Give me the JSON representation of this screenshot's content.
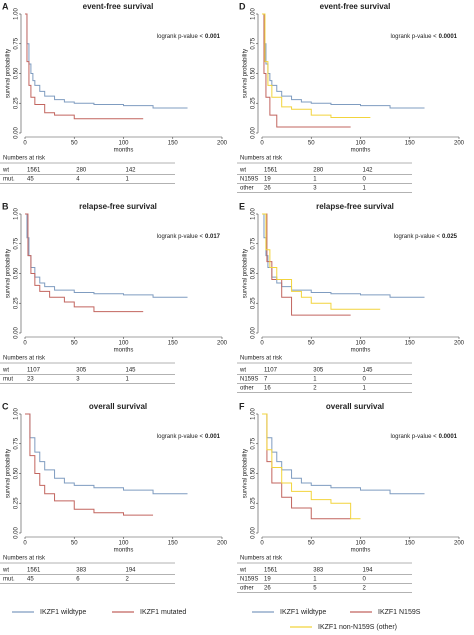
{
  "chart_data": [
    {
      "type": "step",
      "letter": "A",
      "title": "event-free survival",
      "annotation": "logrank p-value <",
      "p_value": 0.001,
      "xlabel": "months",
      "ylabel": "survival probability",
      "xlim": [
        0,
        200
      ],
      "ylim": [
        0,
        1
      ],
      "xticks": [
        0,
        50,
        100,
        150,
        200
      ],
      "yticks": [
        {
          "value": 0,
          "label": "0.00"
        },
        {
          "value": 0.25,
          "label": "0.25"
        },
        {
          "value": 0.5,
          "label": "0.50"
        },
        {
          "value": 0.75,
          "label": "0.75"
        },
        {
          "value": 1,
          "label": "1.00"
        }
      ],
      "series": [
        {
          "name": "IKZF1 wildtype",
          "color": "#7f9cc0",
          "x": [
            0,
            2,
            4,
            6,
            8,
            10,
            15,
            20,
            30,
            40,
            50,
            70,
            100,
            130,
            165
          ],
          "values": [
            1,
            0.75,
            0.58,
            0.5,
            0.44,
            0.4,
            0.35,
            0.31,
            0.28,
            0.26,
            0.25,
            0.24,
            0.23,
            0.21,
            0.21
          ]
        },
        {
          "name": "IKZF1 mutated",
          "color": "#c2655f",
          "x": [
            0,
            2,
            4,
            6,
            10,
            20,
            30,
            50,
            120
          ],
          "values": [
            1,
            0.6,
            0.4,
            0.3,
            0.24,
            0.17,
            0.15,
            0.12,
            0.12
          ]
        }
      ],
      "risk_table": {
        "title": "Numbers at risk",
        "rows": [
          {
            "name": "wt",
            "values": [
              1561,
              280,
              142
            ]
          },
          {
            "name": "mut.",
            "values": [
              45,
              4,
              1
            ]
          }
        ]
      }
    },
    {
      "type": "step",
      "letter": "B",
      "title": "relapse-free survival",
      "annotation": "logrank p-value <",
      "p_value": 0.017,
      "xlabel": "months",
      "ylabel": "survival probability",
      "xlim": [
        0,
        200
      ],
      "ylim": [
        0,
        1
      ],
      "xticks": [
        0,
        50,
        100,
        150,
        200
      ],
      "yticks": [
        {
          "value": 0,
          "label": "0.00"
        },
        {
          "value": 0.25,
          "label": "0.25"
        },
        {
          "value": 0.5,
          "label": "0.50"
        },
        {
          "value": 0.75,
          "label": "0.75"
        },
        {
          "value": 1,
          "label": "1.00"
        }
      ],
      "series": [
        {
          "name": "IKZF1 wildtype",
          "color": "#7f9cc0",
          "x": [
            0,
            2,
            4,
            6,
            10,
            15,
            20,
            30,
            50,
            70,
            100,
            130,
            165
          ],
          "values": [
            1,
            0.8,
            0.65,
            0.55,
            0.47,
            0.42,
            0.39,
            0.36,
            0.34,
            0.33,
            0.32,
            0.3,
            0.3
          ]
        },
        {
          "name": "IKZF1 mutated",
          "color": "#c2655f",
          "x": [
            0,
            3,
            6,
            10,
            15,
            25,
            40,
            50,
            70,
            120
          ],
          "values": [
            1,
            0.65,
            0.5,
            0.4,
            0.35,
            0.3,
            0.26,
            0.22,
            0.18,
            0.18
          ]
        }
      ],
      "risk_table": {
        "title": "Numbers at risk",
        "rows": [
          {
            "name": "wt",
            "values": [
              1107,
              305,
              145
            ]
          },
          {
            "name": "mut",
            "values": [
              23,
              3,
              1
            ]
          }
        ]
      }
    },
    {
      "type": "step",
      "letter": "C",
      "title": "overall survival",
      "annotation": "logrank p-value <",
      "p_value": 0.001,
      "xlabel": "months",
      "ylabel": "survival probability",
      "xlim": [
        0,
        200
      ],
      "ylim": [
        0,
        1
      ],
      "xticks": [
        0,
        50,
        100,
        150,
        200
      ],
      "yticks": [
        {
          "value": 0,
          "label": "0.00"
        },
        {
          "value": 0.25,
          "label": "0.25"
        },
        {
          "value": 0.5,
          "label": "0.50"
        },
        {
          "value": 0.75,
          "label": "0.75"
        },
        {
          "value": 1,
          "label": "1.00"
        }
      ],
      "series": [
        {
          "name": "IKZF1 wildtype",
          "color": "#7f9cc0",
          "x": [
            0,
            5,
            10,
            15,
            20,
            30,
            40,
            50,
            70,
            100,
            130,
            165
          ],
          "values": [
            1,
            0.8,
            0.68,
            0.6,
            0.53,
            0.46,
            0.42,
            0.4,
            0.38,
            0.36,
            0.33,
            0.33
          ]
        },
        {
          "name": "IKZF1 mutated",
          "color": "#c2655f",
          "x": [
            0,
            5,
            10,
            15,
            20,
            30,
            50,
            70,
            100,
            130
          ],
          "values": [
            1,
            0.65,
            0.5,
            0.4,
            0.33,
            0.27,
            0.2,
            0.17,
            0.15,
            0.15
          ]
        }
      ],
      "risk_table": {
        "title": "Numbers at risk",
        "rows": [
          {
            "name": "wt",
            "values": [
              1561,
              383,
              194
            ]
          },
          {
            "name": "mut.",
            "values": [
              45,
              6,
              2
            ]
          }
        ]
      }
    },
    {
      "type": "step",
      "letter": "D",
      "title": "event-free survival",
      "annotation": "logrank p-value <",
      "p_value": 0.0001,
      "xlabel": "months",
      "ylabel": "survival probability",
      "xlim": [
        0,
        200
      ],
      "ylim": [
        0,
        1
      ],
      "xticks": [
        0,
        50,
        100,
        150,
        200
      ],
      "yticks": [
        {
          "value": 0,
          "label": "0.00"
        },
        {
          "value": 0.25,
          "label": "0.25"
        },
        {
          "value": 0.5,
          "label": "0.50"
        },
        {
          "value": 0.75,
          "label": "0.75"
        },
        {
          "value": 1,
          "label": "1.00"
        }
      ],
      "series": [
        {
          "name": "IKZF1 wildtype",
          "color": "#7f9cc0",
          "x": [
            0,
            2,
            4,
            6,
            8,
            10,
            15,
            20,
            30,
            40,
            50,
            70,
            100,
            130,
            165
          ],
          "values": [
            1,
            0.75,
            0.58,
            0.5,
            0.44,
            0.4,
            0.35,
            0.31,
            0.28,
            0.26,
            0.25,
            0.24,
            0.23,
            0.21,
            0.21
          ]
        },
        {
          "name": "IKZF1 N159S",
          "color": "#c2655f",
          "x": [
            0,
            2,
            4,
            8,
            15,
            50,
            90
          ],
          "values": [
            1,
            0.5,
            0.3,
            0.15,
            0.05,
            0.05,
            0.05
          ]
        },
        {
          "name": "IKZF1 non-N159S (other)",
          "color": "#f2d43c",
          "x": [
            0,
            3,
            6,
            10,
            20,
            30,
            50,
            70,
            110
          ],
          "values": [
            1,
            0.6,
            0.4,
            0.3,
            0.22,
            0.2,
            0.15,
            0.13,
            0.13
          ]
        }
      ],
      "risk_table": {
        "title": "Numbers at risk",
        "rows": [
          {
            "name": "wt",
            "values": [
              1561,
              280,
              142
            ]
          },
          {
            "name": "N159S",
            "values": [
              19,
              1,
              0
            ]
          },
          {
            "name": "other",
            "values": [
              26,
              3,
              1
            ]
          }
        ]
      }
    },
    {
      "type": "step",
      "letter": "E",
      "title": "relapse-free survival",
      "annotation": "logrank p-value <",
      "p_value": 0.025,
      "xlabel": "months",
      "ylabel": "survival probability",
      "xlim": [
        0,
        200
      ],
      "ylim": [
        0,
        1
      ],
      "xticks": [
        0,
        50,
        100,
        150,
        200
      ],
      "yticks": [
        {
          "value": 0,
          "label": "0.00"
        },
        {
          "value": 0.25,
          "label": "0.25"
        },
        {
          "value": 0.5,
          "label": "0.50"
        },
        {
          "value": 0.75,
          "label": "0.75"
        },
        {
          "value": 1,
          "label": "1.00"
        }
      ],
      "series": [
        {
          "name": "IKZF1 wildtype",
          "color": "#7f9cc0",
          "x": [
            0,
            2,
            4,
            6,
            10,
            15,
            20,
            30,
            50,
            70,
            100,
            130,
            165
          ],
          "values": [
            1,
            0.8,
            0.65,
            0.55,
            0.47,
            0.42,
            0.39,
            0.36,
            0.34,
            0.33,
            0.32,
            0.3,
            0.3
          ]
        },
        {
          "name": "IKZF1 N159S",
          "color": "#c2655f",
          "x": [
            0,
            5,
            10,
            20,
            30,
            90
          ],
          "values": [
            1,
            0.6,
            0.45,
            0.3,
            0.15,
            0.15
          ]
        },
        {
          "name": "IKZF1 non-N159S (other)",
          "color": "#f2d43c",
          "x": [
            0,
            4,
            8,
            15,
            30,
            40,
            50,
            70,
            120
          ],
          "values": [
            1,
            0.7,
            0.55,
            0.45,
            0.35,
            0.3,
            0.25,
            0.2,
            0.2
          ]
        }
      ],
      "risk_table": {
        "title": "Numbers at risk",
        "rows": [
          {
            "name": "wt",
            "values": [
              1107,
              305,
              145
            ]
          },
          {
            "name": "N159S",
            "values": [
              7,
              1,
              0
            ]
          },
          {
            "name": "other",
            "values": [
              16,
              2,
              1
            ]
          }
        ]
      }
    },
    {
      "type": "step",
      "letter": "F",
      "title": "overall survival",
      "annotation": "logrank p-value <",
      "p_value": 0.0001,
      "xlabel": "months",
      "ylabel": "survival probability",
      "xlim": [
        0,
        200
      ],
      "ylim": [
        0,
        1
      ],
      "xticks": [
        0,
        50,
        100,
        150,
        200
      ],
      "yticks": [
        {
          "value": 0,
          "label": "0.00"
        },
        {
          "value": 0.25,
          "label": "0.25"
        },
        {
          "value": 0.5,
          "label": "0.50"
        },
        {
          "value": 0.75,
          "label": "0.75"
        },
        {
          "value": 1,
          "label": "1.00"
        }
      ],
      "series": [
        {
          "name": "IKZF1 wildtype",
          "color": "#7f9cc0",
          "x": [
            0,
            5,
            10,
            15,
            20,
            30,
            40,
            50,
            70,
            100,
            130,
            165
          ],
          "values": [
            1,
            0.8,
            0.68,
            0.6,
            0.53,
            0.46,
            0.42,
            0.4,
            0.38,
            0.36,
            0.33,
            0.33
          ]
        },
        {
          "name": "IKZF1 N159S",
          "color": "#c2655f",
          "x": [
            0,
            5,
            10,
            20,
            30,
            50,
            90
          ],
          "values": [
            1,
            0.6,
            0.42,
            0.3,
            0.21,
            0.12,
            0.12
          ]
        },
        {
          "name": "IKZF1 non-N159S (other)",
          "color": "#f2d43c",
          "x": [
            0,
            5,
            10,
            20,
            30,
            50,
            70,
            90,
            100
          ],
          "values": [
            1,
            0.7,
            0.55,
            0.42,
            0.35,
            0.28,
            0.25,
            0.12,
            0.12
          ]
        }
      ],
      "risk_table": {
        "title": "Numbers at risk",
        "rows": [
          {
            "name": "wt",
            "values": [
              1561,
              383,
              194
            ]
          },
          {
            "name": "N159S",
            "values": [
              19,
              1,
              0
            ]
          },
          {
            "name": "other",
            "values": [
              26,
              5,
              2
            ]
          }
        ]
      }
    }
  ]
}
